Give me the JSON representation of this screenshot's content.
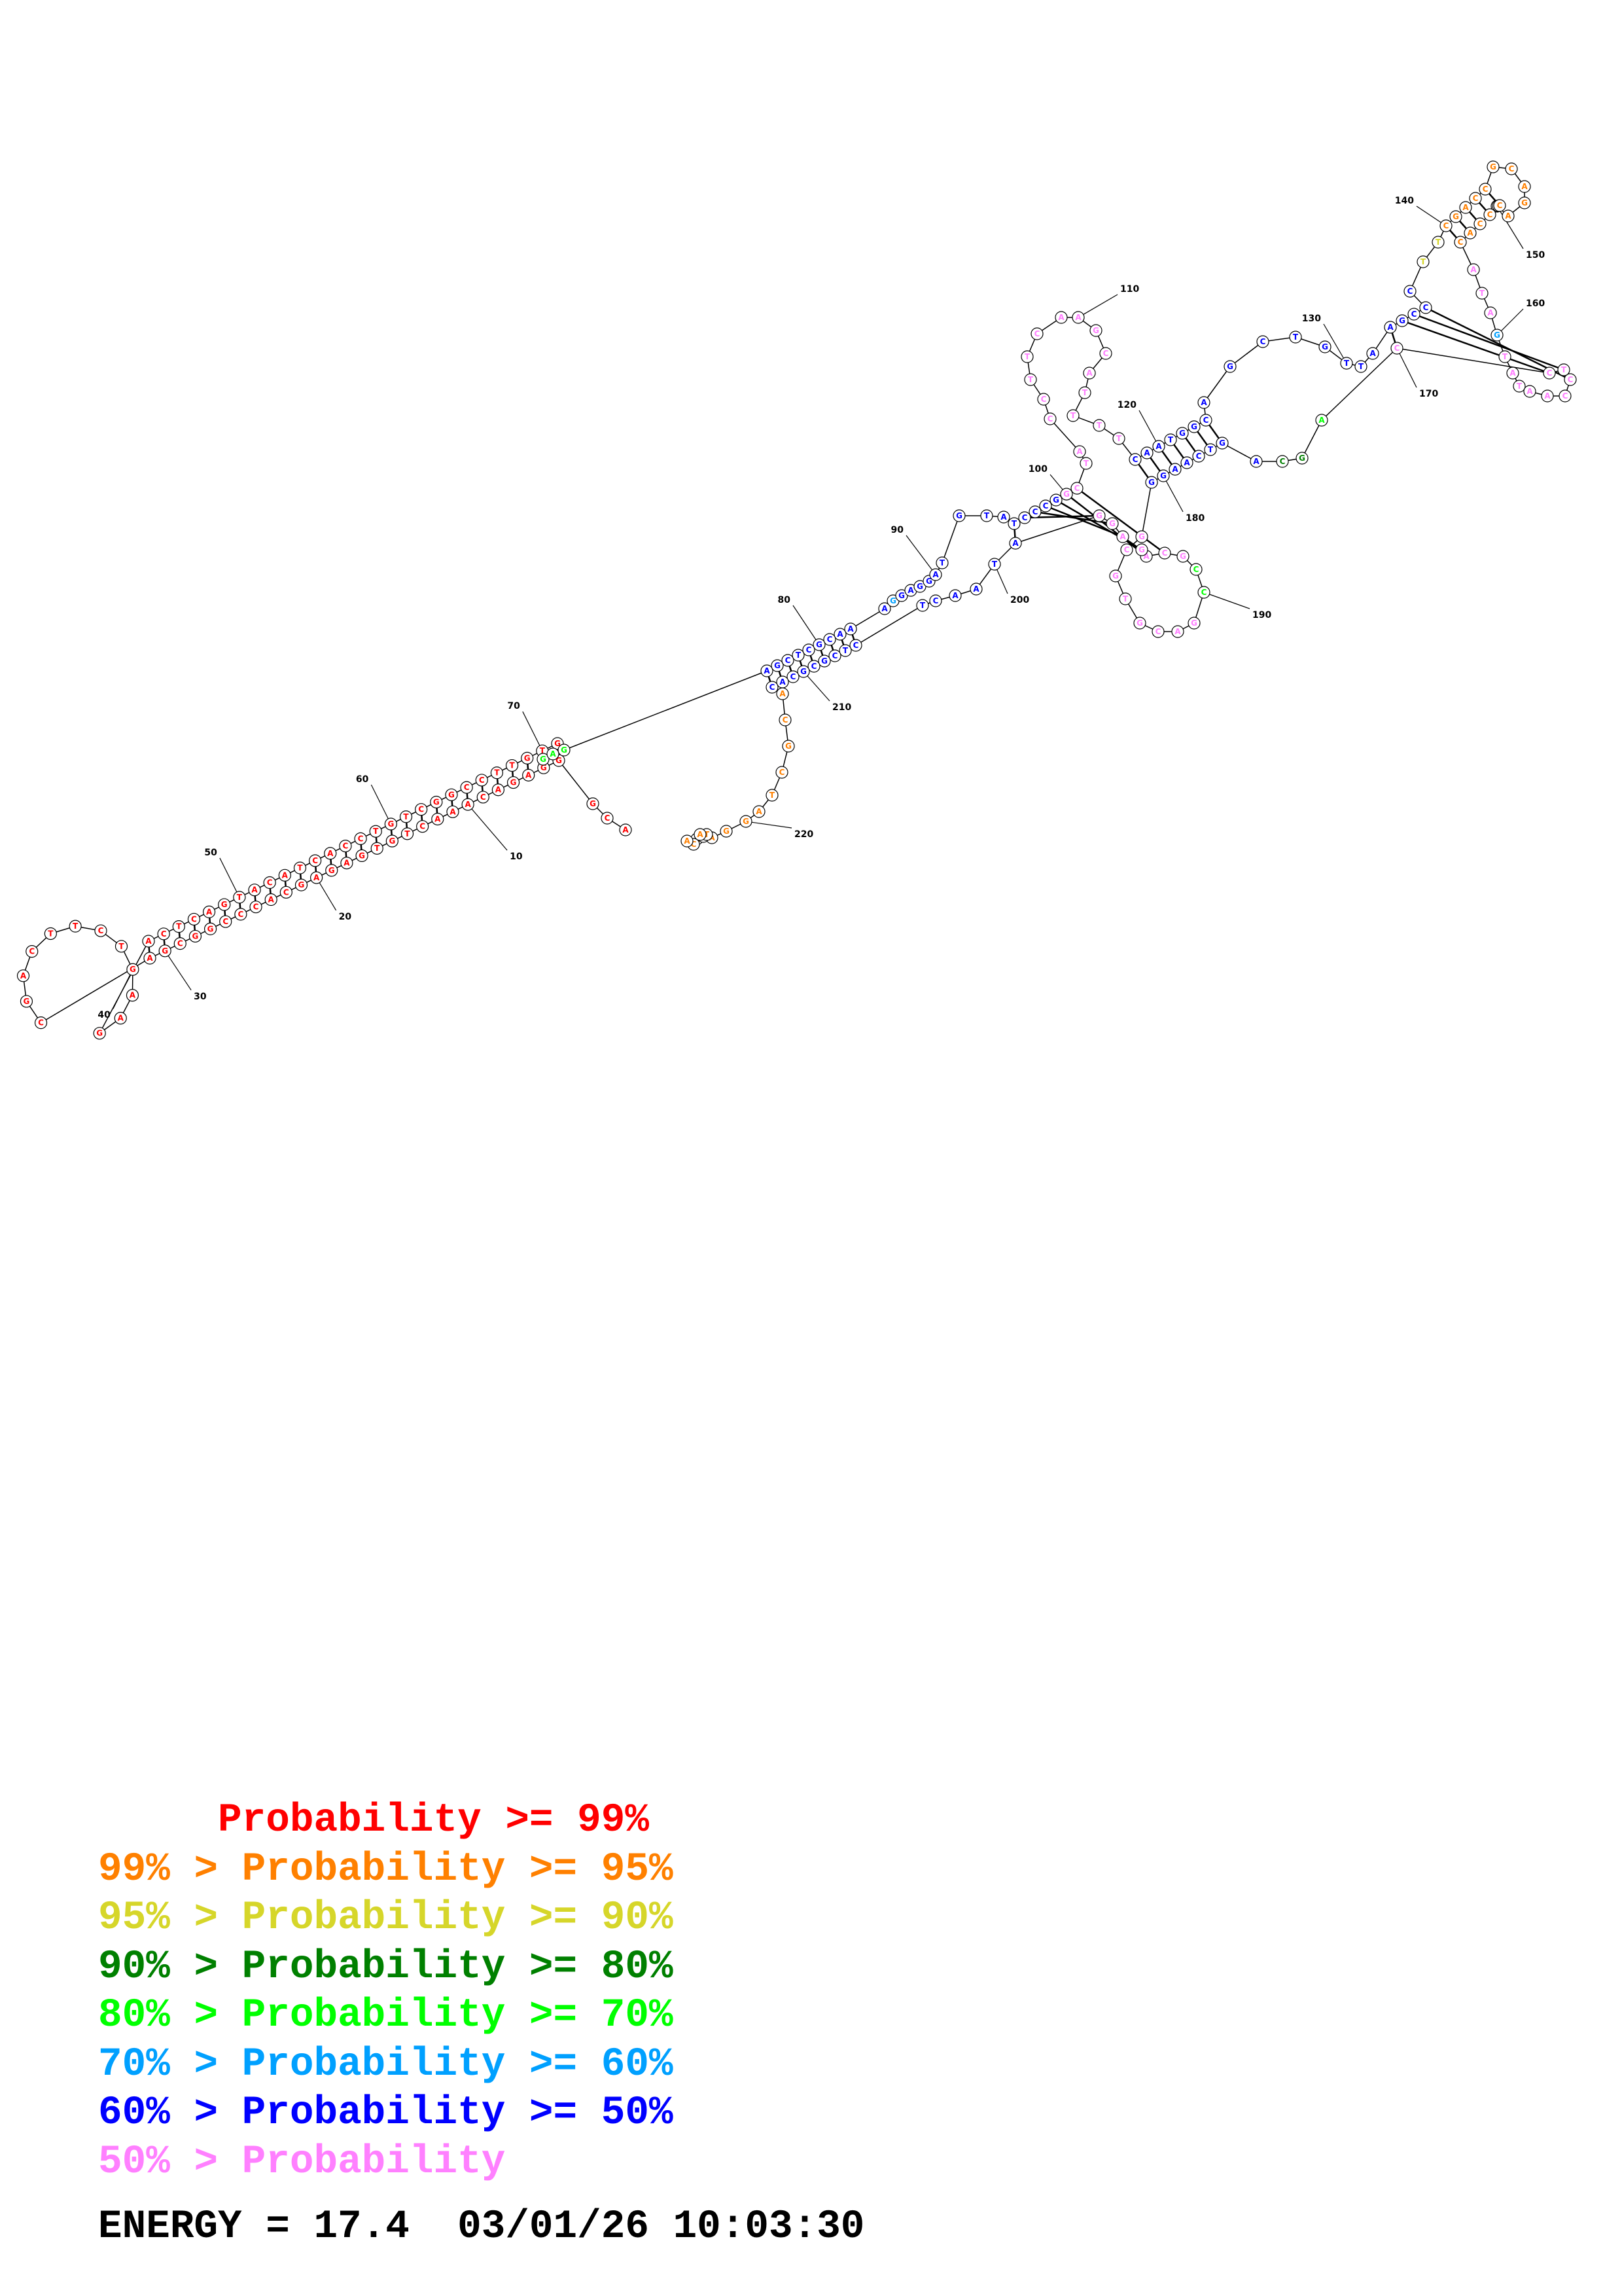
{
  "diagram": {
    "sequence": "ACGGGAGACAAACTGTGAGAGCACCCGGCGACGACTTCTGAAGACTCAGTACATCACCTGTCGGCCTTGTGGAGAGCTCGCAAAGGAGGATGTATCCCGGCTACCTTCAAGCATTTTCAATGGCAGCTGTTAAGCCCTTCGACCGCAGAATCCCACATAGTATAACCTCCAGCAGTCAAGGGCGTGCAGCCGCAGAGGATAACTCTCGCGCACACGCTAGGAATCTAA",
    "ticks": [
      "10",
      "20",
      "30",
      "40",
      "50",
      "60",
      "70",
      "80",
      "90",
      "100",
      "110",
      "120",
      "130",
      "140",
      "150",
      "160",
      "170",
      "180",
      "190",
      "200",
      "210",
      "220"
    ],
    "palette": [
      "#ff0000",
      "#ff8000",
      "#d6d62a",
      "#008000",
      "#00ff00",
      "#00a0ff",
      "#0000ff",
      "#ff80ff"
    ]
  },
  "legend": {
    "rows": [
      {
        "prefix": "",
        "arrow": "",
        "label": "Probability >= 99%",
        "color": "#ff0000"
      },
      {
        "prefix": "99%",
        "arrow": ">",
        "label": "Probability >= 95%",
        "color": "#ff8000"
      },
      {
        "prefix": "95%",
        "arrow": ">",
        "label": "Probability >= 90%",
        "color": "#d6d62a"
      },
      {
        "prefix": "90%",
        "arrow": ">",
        "label": "Probability >= 80%",
        "color": "#008000"
      },
      {
        "prefix": "80%",
        "arrow": ">",
        "label": "Probability >= 70%",
        "color": "#00ff00"
      },
      {
        "prefix": "70%",
        "arrow": ">",
        "label": "Probability >= 60%",
        "color": "#00a0ff"
      },
      {
        "prefix": "60%",
        "arrow": ">",
        "label": "Probability >= 50%",
        "color": "#0000ff"
      },
      {
        "prefix": "50%",
        "arrow": ">",
        "label": "Probability",
        "color": "#ff80ff"
      }
    ]
  },
  "energy": {
    "label": "ENERGY = 17.4",
    "timestamp": "03/01/26 10:03:30"
  }
}
